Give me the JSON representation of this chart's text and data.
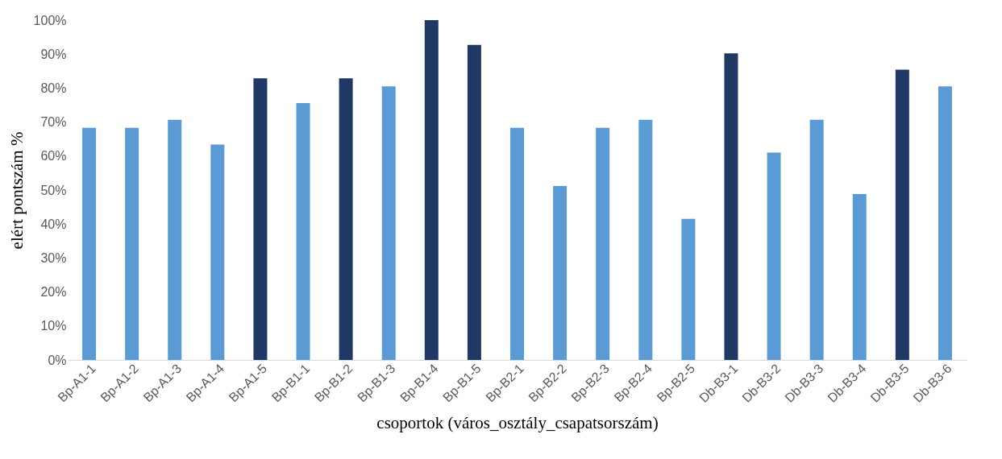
{
  "chart_data": {
    "type": "bar",
    "xlabel": "csoportok  (város_osztály_csapatsorszám)",
    "ylabel": "elért pontszám %",
    "categories": [
      "Bp-A1-1",
      "Bp-A1-2",
      "Bp-A1-3",
      "Bp-A1-4",
      "Bp-A1-5",
      "Bp-B1-1",
      "Bp-B1-2",
      "Bp-B1-3",
      "Bp-B1-4",
      "Bp-B1-5",
      "Bp-B2-1",
      "Bp-B2-2",
      "Bp-B2-3",
      "Bp-B2-4",
      "Bp-B2-5",
      "Db-B3-1",
      "Db-B3-2",
      "Db-B3-3",
      "Db-B3-4",
      "Db-B3-5",
      "Db-B3-6"
    ],
    "values": [
      68.3,
      68.3,
      70.7,
      63.4,
      82.9,
      75.6,
      82.9,
      80.5,
      100,
      92.7,
      68.3,
      51.2,
      68.3,
      70.7,
      41.5,
      90.2,
      61.0,
      70.7,
      48.8,
      85.4,
      80.5
    ],
    "colors": [
      "#5b9bd5",
      "#5b9bd5",
      "#5b9bd5",
      "#5b9bd5",
      "#203864",
      "#5b9bd5",
      "#203864",
      "#5b9bd5",
      "#203864",
      "#203864",
      "#5b9bd5",
      "#5b9bd5",
      "#5b9bd5",
      "#5b9bd5",
      "#5b9bd5",
      "#203864",
      "#5b9bd5",
      "#5b9bd5",
      "#5b9bd5",
      "#203864",
      "#5b9bd5"
    ],
    "ylim": [
      0,
      100
    ],
    "yticks": [
      {
        "value": 0,
        "label": "0%"
      },
      {
        "value": 10,
        "label": "10%"
      },
      {
        "value": 20,
        "label": "20%"
      },
      {
        "value": 30,
        "label": "30%"
      },
      {
        "value": 40,
        "label": "40%"
      },
      {
        "value": 50,
        "label": "50%"
      },
      {
        "value": 60,
        "label": "60%"
      },
      {
        "value": 70,
        "label": "70%"
      },
      {
        "value": 80,
        "label": "80%"
      },
      {
        "value": 90,
        "label": "90%"
      },
      {
        "value": 100,
        "label": "100%"
      }
    ],
    "grid": false,
    "legend": false
  }
}
